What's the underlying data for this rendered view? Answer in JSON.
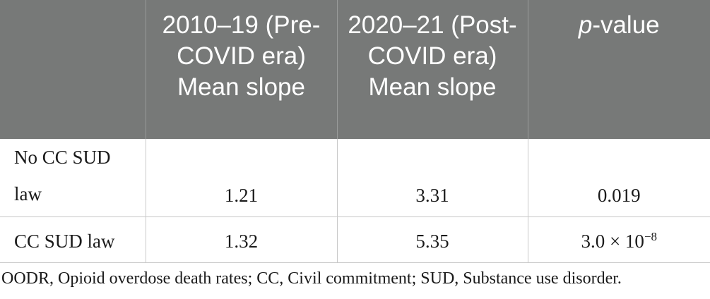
{
  "table": {
    "headers": [
      "",
      "2010–19 (Pre-COVID era) Mean slope",
      "2020–21 (Post-COVID era) Mean slope",
      "-value"
    ],
    "pvalue_italic_prefix": "p",
    "rows": [
      {
        "label": "No CC SUD law",
        "pre": "1.21",
        "post": "3.31",
        "pvalue": "0.019"
      },
      {
        "label": "CC SUD law",
        "pre": "1.32",
        "post": "5.35",
        "pvalue_base": "3.0 × 10",
        "pvalue_exp": "−8"
      }
    ],
    "colors": {
      "header_bg": "#777978",
      "header_text": "#ffffff",
      "grid": "#c8c8c8"
    }
  },
  "footnote": "OODR, Opioid overdose death rates; CC, Civil commitment; SUD, Substance use disorder."
}
